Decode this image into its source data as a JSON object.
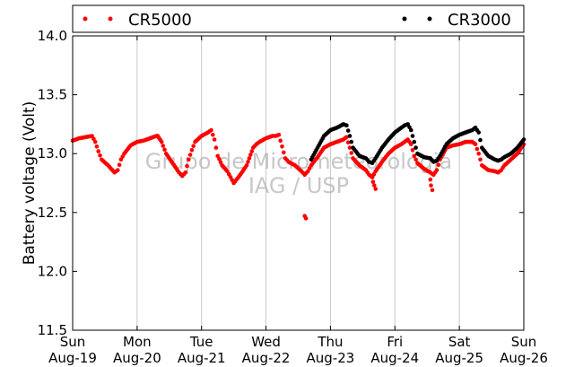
{
  "chart_data": {
    "type": "scatter",
    "title": "",
    "xlabel": "",
    "ylabel": "Battery voltage (Volt)",
    "ylim": [
      11.5,
      14.0
    ],
    "yticks": [
      "11.5",
      "12.0",
      "12.5",
      "13.0",
      "13.5",
      "14.0"
    ],
    "xlim": [
      0,
      7
    ],
    "xticks": [
      {
        "day": "Sun",
        "date": "Aug-19"
      },
      {
        "day": "Mon",
        "date": "Aug-20"
      },
      {
        "day": "Tue",
        "date": "Aug-21"
      },
      {
        "day": "Wed",
        "date": "Aug-22"
      },
      {
        "day": "Thu",
        "date": "Aug-23"
      },
      {
        "day": "Fri",
        "date": "Aug-24"
      },
      {
        "day": "Sat",
        "date": "Aug-25"
      },
      {
        "day": "Sun",
        "date": "Aug-26"
      }
    ],
    "grid": "vertical",
    "legend_position": "top-outside",
    "watermark": [
      "Grupo de Micrometeorologia",
      "IAG / USP"
    ],
    "series": [
      {
        "name": "CR5000",
        "color": "#ff0000",
        "x": [
          0.0,
          0.1,
          0.2,
          0.3,
          0.35,
          0.4,
          0.45,
          0.55,
          0.65,
          0.7,
          0.75,
          0.8,
          0.9,
          1.0,
          1.1,
          1.2,
          1.3,
          1.32,
          1.38,
          1.45,
          1.55,
          1.65,
          1.7,
          1.75,
          1.8,
          1.85,
          1.9,
          2.0,
          2.1,
          2.15,
          2.2,
          2.25,
          2.32,
          2.4,
          2.45,
          2.5,
          2.6,
          2.7,
          2.8,
          2.85,
          2.9,
          3.0,
          3.1,
          3.15,
          3.2,
          3.25,
          3.3,
          3.35,
          3.45,
          3.55,
          3.6,
          3.65,
          3.7,
          3.8,
          3.9,
          4.0,
          4.1,
          4.2,
          4.25,
          4.3,
          4.35,
          4.45,
          4.55,
          4.6,
          4.65,
          4.7,
          4.8,
          4.9,
          5.0,
          5.1,
          5.15,
          5.2,
          5.25,
          5.3,
          5.35,
          5.45,
          5.55,
          5.6,
          5.65,
          5.7,
          5.8,
          5.9,
          6.0,
          6.1,
          6.2,
          6.25,
          6.3,
          6.35,
          6.45,
          6.55,
          6.6,
          6.65,
          6.7,
          6.8,
          6.9,
          7.0
        ],
        "y": [
          13.11,
          13.13,
          13.14,
          13.15,
          13.1,
          13.02,
          12.95,
          12.9,
          12.84,
          12.86,
          12.95,
          13.0,
          13.07,
          13.1,
          13.11,
          13.13,
          13.15,
          13.15,
          13.1,
          13.0,
          12.92,
          12.84,
          12.81,
          12.84,
          12.95,
          13.03,
          13.1,
          13.15,
          13.18,
          13.2,
          13.12,
          12.98,
          12.9,
          12.85,
          12.8,
          12.75,
          12.82,
          12.9,
          13.05,
          13.08,
          13.1,
          13.13,
          13.15,
          13.15,
          13.16,
          13.06,
          12.96,
          12.93,
          12.9,
          12.85,
          12.82,
          12.85,
          12.9,
          12.97,
          13.05,
          13.08,
          13.1,
          13.12,
          13.14,
          13.05,
          12.96,
          12.9,
          12.86,
          12.82,
          12.8,
          12.85,
          12.93,
          13.0,
          13.05,
          13.08,
          13.1,
          13.12,
          13.08,
          12.98,
          12.92,
          12.87,
          12.84,
          12.82,
          12.86,
          12.95,
          13.05,
          13.07,
          13.08,
          13.1,
          13.1,
          13.08,
          13.0,
          12.9,
          12.86,
          12.85,
          12.84,
          12.86,
          12.9,
          12.95,
          13.0,
          13.08
        ],
        "outliers_x": [
          3.6,
          3.62,
          4.65,
          4.66,
          4.68,
          4.7,
          5.55,
          5.56,
          5.58
        ],
        "outliers_y": [
          12.47,
          12.45,
          12.8,
          12.76,
          12.73,
          12.7,
          12.78,
          12.73,
          12.69
        ]
      },
      {
        "name": "CR3000",
        "color": "#000000",
        "x": [
          3.7,
          3.8,
          3.9,
          4.0,
          4.1,
          4.2,
          4.25,
          4.3,
          4.35,
          4.45,
          4.55,
          4.6,
          4.65,
          4.7,
          4.8,
          4.9,
          5.0,
          5.1,
          5.15,
          5.2,
          5.25,
          5.3,
          5.35,
          5.45,
          5.55,
          5.6,
          5.65,
          5.7,
          5.8,
          5.9,
          6.0,
          6.1,
          6.2,
          6.25,
          6.3,
          6.35,
          6.45,
          6.55,
          6.6,
          6.65,
          6.7,
          6.8,
          6.9,
          7.0
        ],
        "y": [
          12.95,
          13.05,
          13.15,
          13.2,
          13.22,
          13.25,
          13.24,
          13.15,
          13.05,
          12.98,
          12.96,
          12.93,
          12.92,
          12.96,
          13.05,
          13.12,
          13.18,
          13.22,
          13.24,
          13.25,
          13.2,
          13.1,
          13.0,
          12.97,
          12.96,
          12.93,
          12.94,
          12.98,
          13.08,
          13.13,
          13.16,
          13.18,
          13.2,
          13.22,
          13.18,
          13.05,
          12.98,
          12.95,
          12.94,
          12.95,
          12.97,
          13.0,
          13.05,
          13.12
        ]
      }
    ]
  }
}
